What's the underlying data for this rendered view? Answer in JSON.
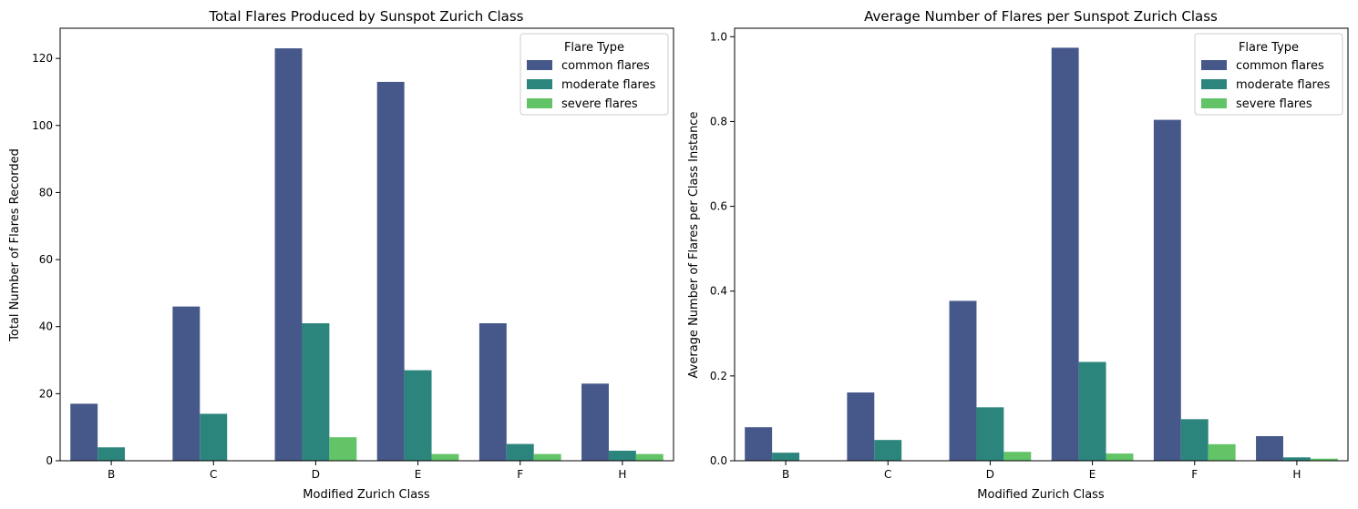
{
  "chart_data": [
    {
      "type": "bar",
      "title": "Total Flares Produced by Sunspot Zurich Class",
      "xlabel": "Modified Zurich Class",
      "ylabel": "Total Number of Flares Recorded",
      "categories": [
        "B",
        "C",
        "D",
        "E",
        "F",
        "H"
      ],
      "ylim": [
        0,
        129
      ],
      "yticks": [
        "0",
        "20",
        "40",
        "60",
        "80",
        "100",
        "120"
      ],
      "ytick_values": [
        0,
        20,
        40,
        60,
        80,
        100,
        120
      ],
      "legend_title": "Flare Type",
      "legend_position": "top-right",
      "series": [
        {
          "name": "common flares",
          "values": [
            17,
            46,
            123,
            113,
            41,
            23
          ]
        },
        {
          "name": "moderate flares",
          "values": [
            4,
            14,
            41,
            27,
            5,
            3
          ]
        },
        {
          "name": "severe flares",
          "values": [
            0,
            0,
            7,
            2,
            2,
            2
          ]
        }
      ]
    },
    {
      "type": "bar",
      "title": "Average Number of Flares per Sunspot Zurich Class",
      "xlabel": "Modified Zurich Class",
      "ylabel": "Average Number of Flares per Class Instance",
      "categories": [
        "B",
        "C",
        "D",
        "E",
        "F",
        "H"
      ],
      "ylim": [
        0,
        1.02
      ],
      "yticks": [
        "0.0",
        "0.2",
        "0.4",
        "0.6",
        "0.8",
        "1.0"
      ],
      "ytick_values": [
        0,
        0.2,
        0.4,
        0.6,
        0.8,
        1.0
      ],
      "legend_title": "Flare Type",
      "legend_position": "top-right",
      "series": [
        {
          "name": "common flares",
          "values": [
            0.079,
            0.161,
            0.377,
            0.974,
            0.804,
            0.058
          ]
        },
        {
          "name": "moderate flares",
          "values": [
            0.019,
            0.049,
            0.126,
            0.233,
            0.098,
            0.008
          ]
        },
        {
          "name": "severe flares",
          "values": [
            0.0,
            0.0,
            0.021,
            0.017,
            0.039,
            0.005
          ]
        }
      ]
    }
  ],
  "colors": {
    "common": "#46588a",
    "moderate": "#2b857c",
    "severe": "#62c466",
    "axis": "#000000"
  }
}
